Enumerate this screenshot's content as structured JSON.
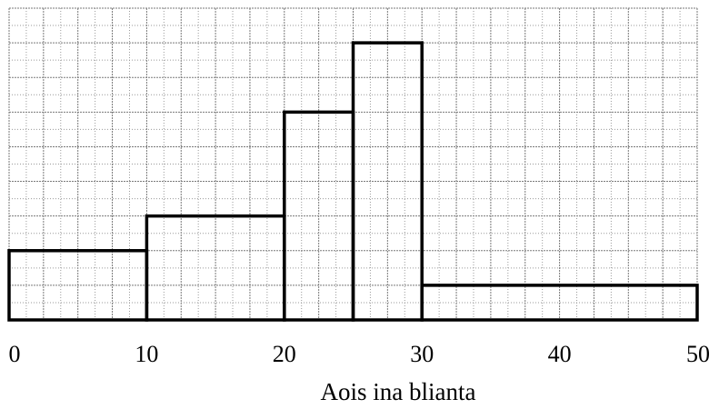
{
  "chart_data": {
    "type": "bar",
    "subtype": "histogram",
    "xlabel": "Aois ina blianta",
    "ylabel": "",
    "xlim": [
      0,
      50
    ],
    "ylim": [
      0,
      9
    ],
    "grid": true,
    "x_tick_labels": [
      "0",
      "10",
      "20",
      "30",
      "40",
      "50"
    ],
    "x_ticks": [
      0,
      10,
      20,
      30,
      40,
      50
    ],
    "bins": [
      {
        "x_start": 0,
        "x_end": 10,
        "height": 2
      },
      {
        "x_start": 10,
        "x_end": 20,
        "height": 3
      },
      {
        "x_start": 20,
        "x_end": 25,
        "height": 6
      },
      {
        "x_start": 25,
        "x_end": 30,
        "height": 8
      },
      {
        "x_start": 30,
        "x_end": 50,
        "height": 1
      }
    ]
  },
  "colors": {
    "grid_minor": "#9a9a9a",
    "grid_major": "#7a7a7a",
    "bar_stroke": "#000000",
    "bar_fill": "#ffffff"
  }
}
